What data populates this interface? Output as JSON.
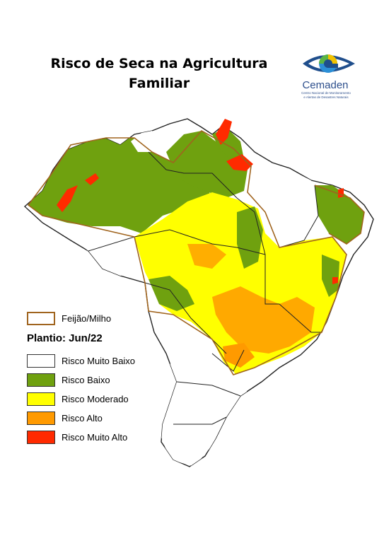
{
  "title": {
    "line1": "Risco de Seca na Agricultura",
    "line2": "Familiar"
  },
  "logo": {
    "name": "Cemaden",
    "subtitle_line1": "Centro Nacional de Monitoramento",
    "subtitle_line2": "e Alertas de Desastres Naturais"
  },
  "legend": {
    "crop_label": "Feijão/Milho",
    "planting_label": "Plantio: Jun/22",
    "classes": [
      {
        "label": "Risco Muito Baixo",
        "color": "#ffffff"
      },
      {
        "label": "Risco Baixo",
        "color": "#6fa10f"
      },
      {
        "label": "Risco Moderado",
        "color": "#ffff00"
      },
      {
        "label": "Risco Alto",
        "color": "#ff9a00"
      },
      {
        "label": "Risco Muito Alto",
        "color": "#ff2a00"
      }
    ]
  },
  "colors": {
    "crop_outline": "#a0641e",
    "state_border": "#222222"
  }
}
